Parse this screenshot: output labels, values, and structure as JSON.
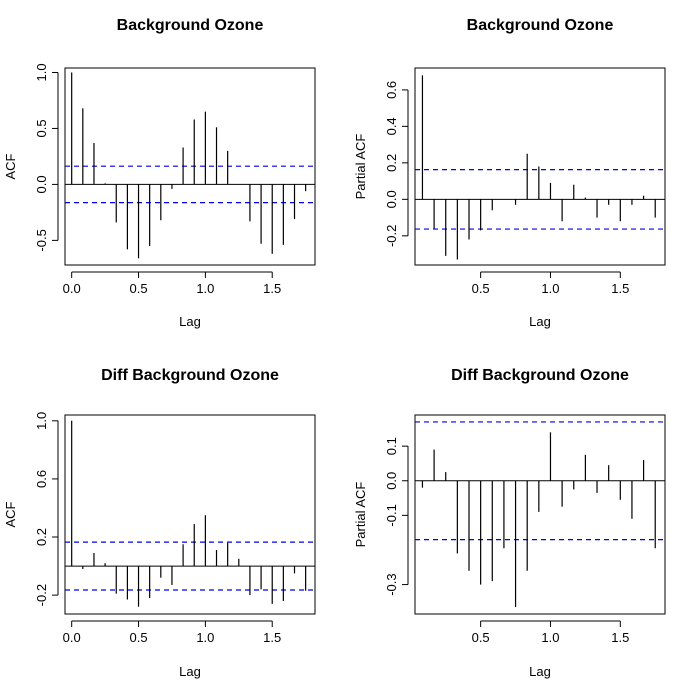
{
  "figure": {
    "ci_color": "#0000ee",
    "line_color": "#000000"
  },
  "chart_data": [
    {
      "type": "bar",
      "title": "Background Ozone",
      "xlabel": "Lag",
      "ylabel": "ACF",
      "xlim": [
        -0.05,
        1.82
      ],
      "ylim": [
        -0.72,
        1.04
      ],
      "xticks": [
        0.0,
        0.5,
        1.0,
        1.5
      ],
      "xtick_labels": [
        "0.0",
        "0.5",
        "1.0",
        "1.5"
      ],
      "yticks": [
        -0.5,
        0.0,
        0.5,
        1.0
      ],
      "ytick_labels": [
        "-0.5",
        "0.0",
        "0.5",
        "1.0"
      ],
      "ci": 0.163,
      "x": [
        0.0,
        0.0833,
        0.1667,
        0.25,
        0.3333,
        0.4167,
        0.5,
        0.5833,
        0.6667,
        0.75,
        0.8333,
        0.9167,
        1.0,
        1.0833,
        1.1667,
        1.25,
        1.3333,
        1.4167,
        1.5,
        1.5833,
        1.6667,
        1.75
      ],
      "values": [
        1.0,
        0.68,
        0.37,
        0.01,
        -0.34,
        -0.58,
        -0.66,
        -0.55,
        -0.32,
        -0.04,
        0.33,
        0.58,
        0.65,
        0.51,
        0.3,
        0.0,
        -0.33,
        -0.53,
        -0.62,
        -0.54,
        -0.31,
        -0.06
      ]
    },
    {
      "type": "bar",
      "title": "Background Ozone",
      "xlabel": "Lag",
      "ylabel": "Partial ACF",
      "xlim": [
        0.03,
        1.82
      ],
      "ylim": [
        -0.36,
        0.72
      ],
      "xticks": [
        0.5,
        1.0,
        1.5
      ],
      "xtick_labels": [
        "0.5",
        "1.0",
        "1.5"
      ],
      "yticks": [
        -0.2,
        0.0,
        0.2,
        0.4,
        0.6
      ],
      "ytick_labels": [
        "-0.2",
        "0.0",
        "0.2",
        "0.4",
        "0.6"
      ],
      "ci": 0.163,
      "x": [
        0.0833,
        0.1667,
        0.25,
        0.3333,
        0.4167,
        0.5,
        0.5833,
        0.6667,
        0.75,
        0.8333,
        0.9167,
        1.0,
        1.0833,
        1.1667,
        1.25,
        1.3333,
        1.4167,
        1.5,
        1.5833,
        1.6667,
        1.75
      ],
      "values": [
        0.68,
        -0.16,
        -0.31,
        -0.33,
        -0.22,
        -0.17,
        -0.06,
        0.0,
        -0.03,
        0.25,
        0.18,
        0.09,
        -0.12,
        0.08,
        0.01,
        -0.1,
        -0.03,
        -0.12,
        -0.03,
        0.02,
        -0.1
      ]
    },
    {
      "type": "bar",
      "title": "Diff Background Ozone",
      "xlabel": "Lag",
      "ylabel": "ACF",
      "xlim": [
        -0.05,
        1.82
      ],
      "ylim": [
        -0.33,
        1.04
      ],
      "xticks": [
        0.0,
        0.5,
        1.0,
        1.5
      ],
      "xtick_labels": [
        "0.0",
        "0.5",
        "1.0",
        "1.5"
      ],
      "yticks": [
        -0.2,
        0.2,
        0.6,
        1.0
      ],
      "ytick_labels": [
        "-0.2",
        "0.2",
        "0.6",
        "1.0"
      ],
      "ci": 0.165,
      "x": [
        0.0,
        0.0833,
        0.1667,
        0.25,
        0.3333,
        0.4167,
        0.5,
        0.5833,
        0.6667,
        0.75,
        0.8333,
        0.9167,
        1.0,
        1.0833,
        1.1667,
        1.25,
        1.3333,
        1.4167,
        1.5,
        1.5833,
        1.6667,
        1.75
      ],
      "values": [
        1.0,
        -0.02,
        0.09,
        0.02,
        -0.19,
        -0.23,
        -0.28,
        -0.22,
        -0.08,
        -0.13,
        0.15,
        0.29,
        0.35,
        0.11,
        0.16,
        0.05,
        -0.2,
        -0.16,
        -0.26,
        -0.24,
        -0.05,
        -0.17
      ]
    },
    {
      "type": "bar",
      "title": "Diff Background Ozone",
      "xlabel": "Lag",
      "ylabel": "Partial ACF",
      "xlim": [
        0.03,
        1.82
      ],
      "ylim": [
        -0.385,
        0.19
      ],
      "xticks": [
        0.5,
        1.0,
        1.5
      ],
      "xtick_labels": [
        "0.5",
        "1.0",
        "1.5"
      ],
      "yticks": [
        -0.3,
        -0.1,
        0.0,
        0.1
      ],
      "ytick_labels": [
        "-0.3",
        "-0.1",
        "0.0",
        "0.1"
      ],
      "ci": 0.17,
      "x": [
        0.0833,
        0.1667,
        0.25,
        0.3333,
        0.4167,
        0.5,
        0.5833,
        0.6667,
        0.75,
        0.8333,
        0.9167,
        1.0,
        1.0833,
        1.1667,
        1.25,
        1.3333,
        1.4167,
        1.5,
        1.5833,
        1.6667,
        1.75
      ],
      "values": [
        -0.02,
        0.09,
        0.025,
        -0.21,
        -0.26,
        -0.3,
        -0.29,
        -0.195,
        -0.365,
        -0.26,
        -0.09,
        0.14,
        -0.075,
        -0.025,
        0.075,
        -0.035,
        0.045,
        -0.055,
        -0.11,
        0.06,
        -0.195
      ]
    }
  ]
}
